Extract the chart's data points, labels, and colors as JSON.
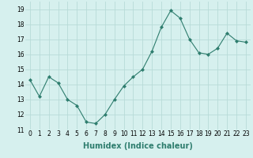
{
  "x": [
    0,
    1,
    2,
    3,
    4,
    5,
    6,
    7,
    8,
    9,
    10,
    11,
    12,
    13,
    14,
    15,
    16,
    17,
    18,
    19,
    20,
    21,
    22,
    23
  ],
  "y": [
    14.3,
    13.2,
    14.5,
    14.1,
    13.0,
    12.6,
    11.5,
    11.4,
    12.0,
    13.0,
    13.9,
    14.5,
    15.0,
    16.2,
    17.8,
    18.9,
    18.4,
    17.0,
    16.1,
    16.0,
    16.4,
    17.4,
    16.9,
    16.8
  ],
  "line_color": "#2e7d6e",
  "marker": "D",
  "marker_size": 2,
  "bg_color": "#d6f0ee",
  "grid_color": "#b8dbd8",
  "xlabel": "Humidex (Indice chaleur)",
  "ylim": [
    11,
    19.5
  ],
  "yticks": [
    11,
    12,
    13,
    14,
    15,
    16,
    17,
    18,
    19
  ],
  "xticks": [
    0,
    1,
    2,
    3,
    4,
    5,
    6,
    7,
    8,
    9,
    10,
    11,
    12,
    13,
    14,
    15,
    16,
    17,
    18,
    19,
    20,
    21,
    22,
    23
  ],
  "tick_label_fontsize": 5.5,
  "xlabel_fontsize": 7
}
